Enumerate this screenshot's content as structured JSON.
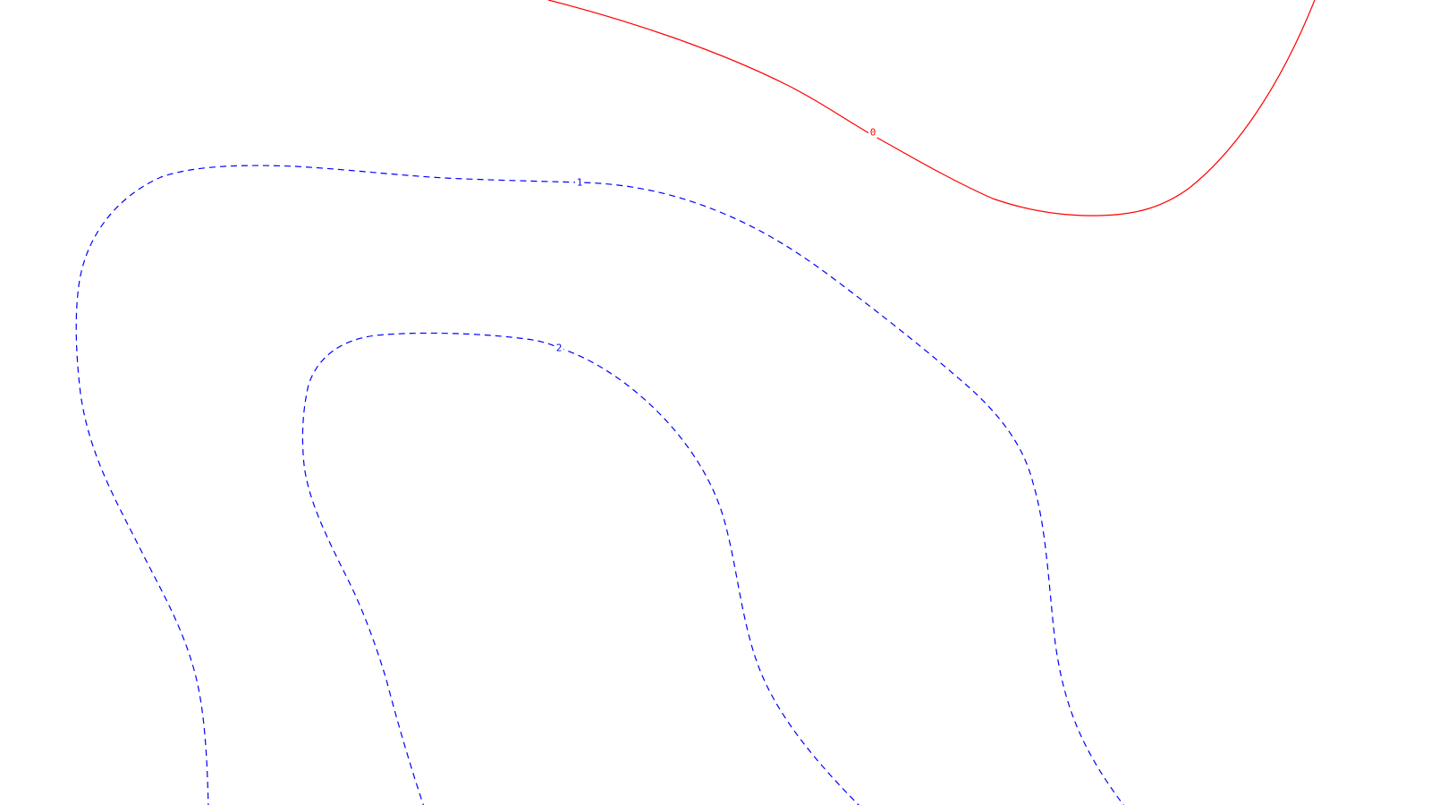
{
  "contours": [
    {
      "level": "0",
      "color": "#ff0000",
      "style": "solid"
    },
    {
      "level": "1",
      "color": "#0000ff",
      "style": "dashed"
    },
    {
      "level": "2",
      "color": "#0000ff",
      "style": "dashed"
    }
  ]
}
